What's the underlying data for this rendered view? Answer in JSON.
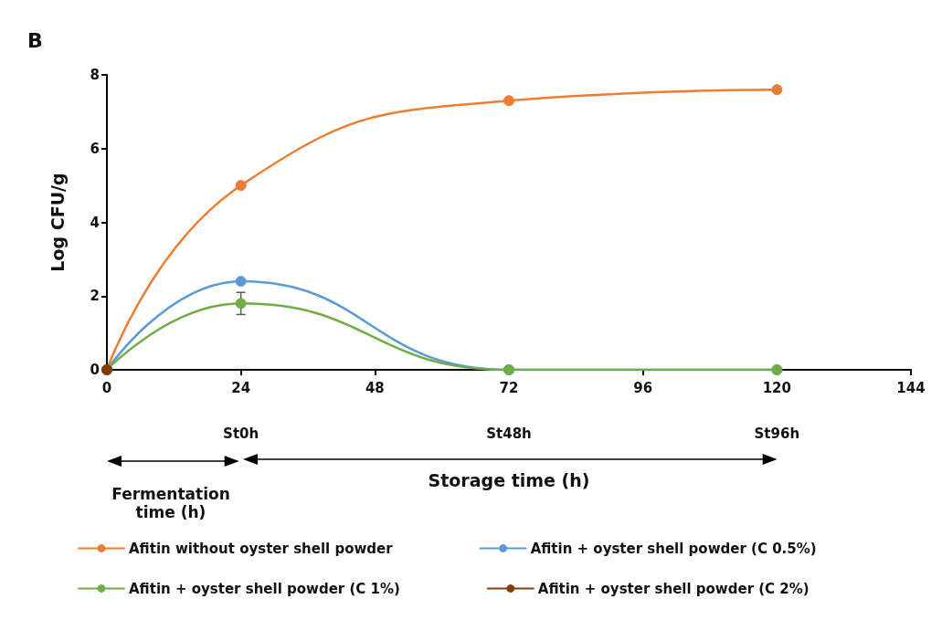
{
  "chart_data": {
    "type": "line",
    "title": "B",
    "ylabel": "Log CFU/g",
    "xlabel": "Storage time (h)",
    "x": [
      0,
      24,
      72,
      120
    ],
    "xlim": [
      0,
      144
    ],
    "xticks": [
      0,
      24,
      48,
      72,
      96,
      120,
      144
    ],
    "ylim": [
      0,
      8
    ],
    "yticks": [
      0,
      2,
      4,
      6,
      8
    ],
    "grid": false,
    "legend": "bottom",
    "marker": "circle",
    "line_style": "solid",
    "series": [
      {
        "name": "Afitin without oyster shell powder",
        "color": "#ed7d31",
        "values": [
          0,
          5.0,
          7.3,
          7.6
        ]
      },
      {
        "name": "Afitin + oyster shell powder (C 0.5%)",
        "color": "#5b9bd5",
        "values": [
          0,
          2.4,
          0,
          0
        ]
      },
      {
        "name": "Afitin + oyster shell powder (C 1%)",
        "color": "#70ad47",
        "values": [
          0,
          1.8,
          0,
          0
        ],
        "errors": [
          null,
          0.3,
          null,
          null
        ]
      },
      {
        "name": "Afitin + oyster shell powder (C 2%)",
        "color": "#843c0c",
        "x": [
          0
        ],
        "values": [
          0
        ]
      }
    ],
    "annotations": [
      "St0h",
      "St48h",
      "St96h",
      "Fermentation time (h)"
    ]
  }
}
